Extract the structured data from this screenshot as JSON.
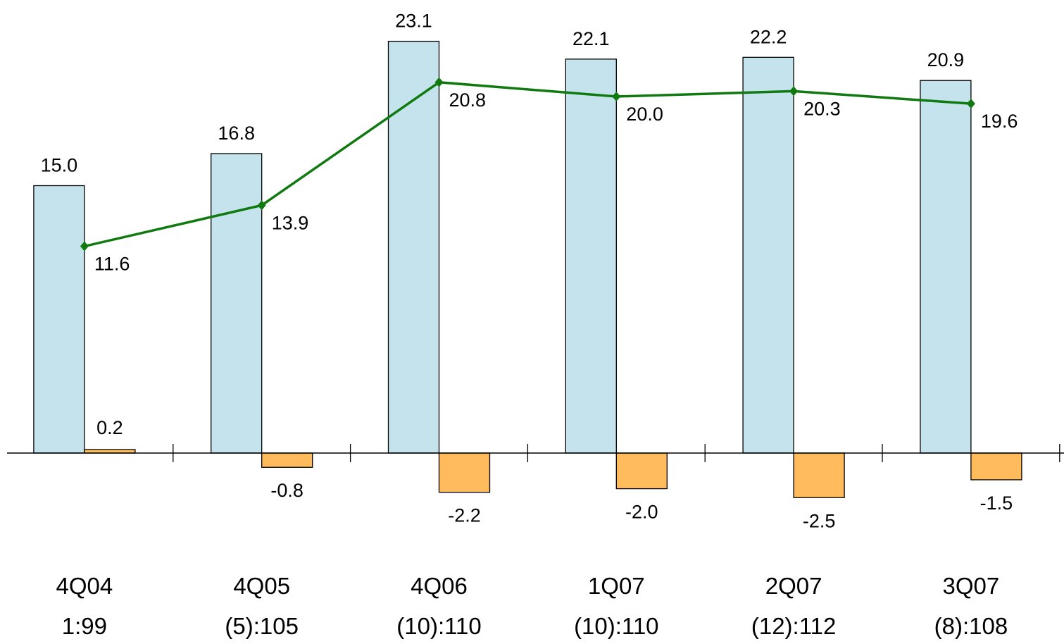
{
  "chart_data": {
    "type": "bar",
    "categories": [
      "4Q04",
      "4Q05",
      "4Q06",
      "1Q07",
      "2Q07",
      "3Q07"
    ],
    "sublabels": [
      "1:99",
      "(5):105",
      "(10):110",
      "(10):110",
      "(12):112",
      "(8):108"
    ],
    "series": [
      {
        "type": "bar",
        "values": [
          15.0,
          16.8,
          23.1,
          22.1,
          22.2,
          20.9
        ],
        "labels": [
          "15.0",
          "16.8",
          "23.1",
          "22.1",
          "22.2",
          "20.9"
        ],
        "color": "#c4e3ec"
      },
      {
        "type": "bar",
        "values": [
          0.2,
          -0.8,
          -2.2,
          -2.0,
          -2.5,
          -1.5
        ],
        "labels": [
          "0.2",
          "-0.8",
          "-2.2",
          "-2.0",
          "-2.5",
          "-1.5"
        ],
        "color": "#ffbb5c"
      },
      {
        "type": "line",
        "values": [
          11.6,
          13.9,
          20.8,
          20.0,
          20.3,
          19.6
        ],
        "labels": [
          "11.6",
          "13.9",
          "20.8",
          "20.0",
          "20.3",
          "19.6"
        ],
        "color": "#107a10"
      }
    ],
    "grid": false,
    "legend": "none"
  }
}
